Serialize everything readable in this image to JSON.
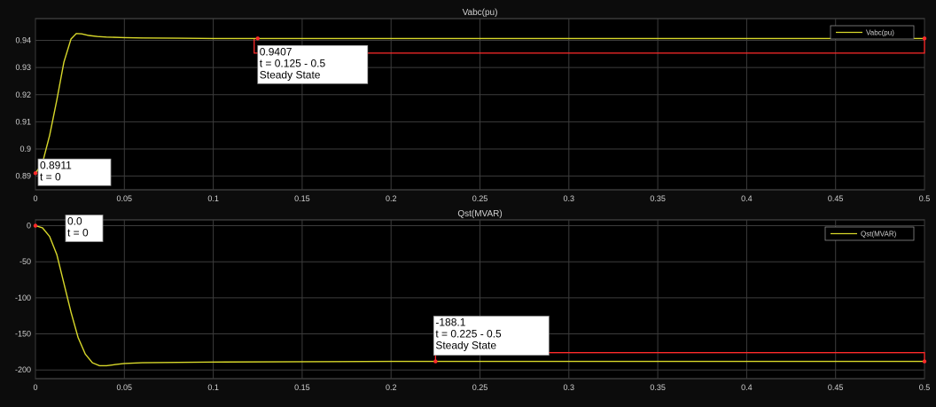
{
  "colors": {
    "figure_bg": "#0c0c0c",
    "axes_bg": "#000000",
    "grid": "#3c3c3c",
    "tick_label": "#d0d0d0",
    "title": "#d0d0d0",
    "signal": "#d8d82a",
    "marker": "#ff2a2a",
    "annotation_bg": "#ffffff",
    "annotation_text": "#000000"
  },
  "chart_data": [
    {
      "type": "line",
      "title": "Vabc(pu)",
      "xlabel": "",
      "ylabel": "",
      "xlim": [
        0,
        0.5
      ],
      "ylim": [
        0.885,
        0.948
      ],
      "xticks": [
        0,
        0.05,
        0.1,
        0.15,
        0.2,
        0.25,
        0.3,
        0.35,
        0.4,
        0.45,
        0.5
      ],
      "xtick_labels": [
        "0",
        "0.05",
        "0.1",
        "0.15",
        "0.2",
        "0.25",
        "0.3",
        "0.35",
        "0.4",
        "0.45",
        "0.5"
      ],
      "yticks": [
        0.89,
        0.9,
        0.91,
        0.92,
        0.93,
        0.94
      ],
      "ytick_labels": [
        "0.89",
        "0.9",
        "0.91",
        "0.92",
        "0.93",
        "0.94"
      ],
      "grid": true,
      "legend": {
        "position": "top-right",
        "entries": [
          "Vabc(pu)"
        ]
      },
      "series": [
        {
          "name": "Vabc(pu)",
          "x": [
            0,
            0.004,
            0.008,
            0.012,
            0.016,
            0.02,
            0.023,
            0.026,
            0.03,
            0.035,
            0.04,
            0.05,
            0.06,
            0.08,
            0.1,
            0.15,
            0.2,
            0.3,
            0.4,
            0.5
          ],
          "y": [
            0.8911,
            0.895,
            0.905,
            0.918,
            0.932,
            0.9405,
            0.9425,
            0.9424,
            0.9418,
            0.9414,
            0.9412,
            0.941,
            0.9409,
            0.9408,
            0.9407,
            0.9407,
            0.9407,
            0.9407,
            0.9407,
            0.9407
          ]
        }
      ],
      "annotations": [
        {
          "x": 0,
          "y": 0.8911,
          "lines": [
            "0.8911",
            "t = 0"
          ]
        },
        {
          "x": 0.125,
          "y": 0.9407,
          "lines": [
            "0.9407",
            "t = 0.125 - 0.5",
            "Steady State"
          ]
        }
      ],
      "bracket": {
        "x_start": 0.123,
        "x_end": 0.5,
        "y_level": 0.9407,
        "y_bottom": 0.9353
      }
    },
    {
      "type": "line",
      "title": "Qst(MVAR)",
      "xlabel": "",
      "ylabel": "",
      "xlim": [
        0,
        0.5
      ],
      "ylim": [
        -212,
        8
      ],
      "xticks": [
        0,
        0.05,
        0.1,
        0.15,
        0.2,
        0.25,
        0.3,
        0.35,
        0.4,
        0.45,
        0.5
      ],
      "xtick_labels": [
        "0",
        "0.05",
        "0.1",
        "0.15",
        "0.2",
        "0.25",
        "0.3",
        "0.35",
        "0.4",
        "0.45",
        "0.5"
      ],
      "yticks": [
        0,
        -50,
        -100,
        -150,
        -200
      ],
      "ytick_labels": [
        "0",
        "-50",
        "-100",
        "-150",
        "-200"
      ],
      "grid": true,
      "legend": {
        "position": "top-right",
        "entries": [
          "Qst(MVAR)"
        ]
      },
      "series": [
        {
          "name": "Qst(MVAR)",
          "x": [
            0,
            0.004,
            0.008,
            0.012,
            0.016,
            0.02,
            0.024,
            0.028,
            0.032,
            0.036,
            0.04,
            0.045,
            0.05,
            0.06,
            0.08,
            0.1,
            0.15,
            0.2,
            0.25,
            0.3,
            0.4,
            0.5
          ],
          "y": [
            0,
            -3,
            -15,
            -40,
            -80,
            -120,
            -155,
            -178,
            -190,
            -194,
            -194,
            -192.5,
            -191,
            -190,
            -189.5,
            -189,
            -188.5,
            -188.2,
            -188.1,
            -188.1,
            -188.1,
            -188.1
          ]
        }
      ],
      "annotations": [
        {
          "x": 0,
          "y": 0,
          "lines": [
            "0.0",
            "t = 0"
          ]
        },
        {
          "x": 0.225,
          "y": -188.1,
          "lines": [
            "-188.1",
            "t = 0.225 - 0.5",
            "Steady State"
          ]
        }
      ],
      "bracket": {
        "x_start": 0.225,
        "x_end": 0.5,
        "y_level": -188.1,
        "y_top": -176
      }
    }
  ]
}
